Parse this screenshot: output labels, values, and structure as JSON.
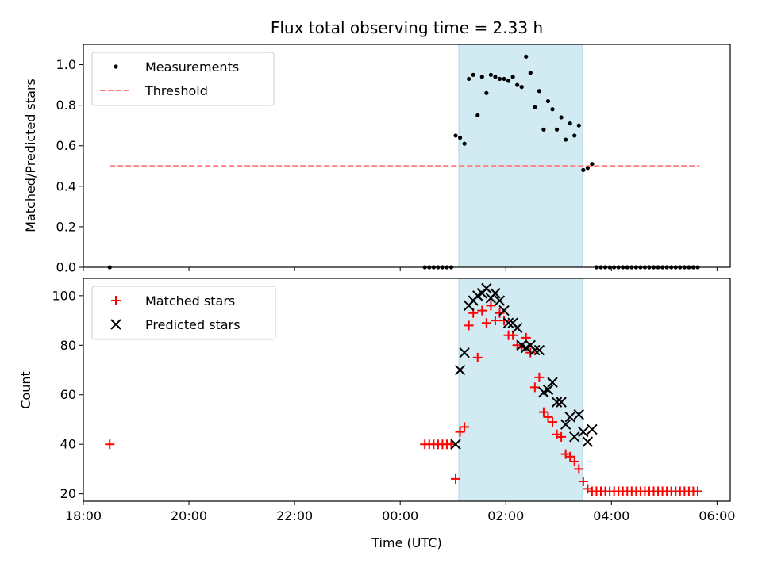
{
  "chart_data": [
    {
      "type": "scatter",
      "title": "Flux total observing time = 2.33 h",
      "xlabel": "",
      "ylabel": "Matched/Predicted stars",
      "xlim": [
        "18:00",
        "06:15"
      ],
      "ylim": [
        0,
        1.1
      ],
      "yticks": [
        "0.0",
        "0.2",
        "0.4",
        "0.6",
        "0.8",
        "1.0"
      ],
      "legend_position": "top-left",
      "observing_window": {
        "start": "01:05",
        "end": "03:25",
        "color": "#add8e6"
      },
      "series": [
        {
          "name": "Measurements",
          "marker": "dot",
          "color": "#000000",
          "x": [
            "18:30",
            "00:28",
            "00:33",
            "00:38",
            "00:43",
            "00:48",
            "00:53",
            "00:58",
            "01:03",
            "01:08",
            "01:13",
            "01:18",
            "01:23",
            "01:28",
            "01:33",
            "01:38",
            "01:43",
            "01:48",
            "01:53",
            "01:58",
            "02:03",
            "02:08",
            "02:13",
            "02:18",
            "02:23",
            "02:28",
            "02:33",
            "02:38",
            "02:43",
            "02:48",
            "02:53",
            "02:58",
            "03:03",
            "03:08",
            "03:13",
            "03:18",
            "03:23",
            "03:28",
            "03:33",
            "03:38",
            "03:43",
            "03:48",
            "03:53",
            "03:58",
            "04:03",
            "04:08",
            "04:13",
            "04:18",
            "04:23",
            "04:28",
            "04:33",
            "04:38",
            "04:43",
            "04:48",
            "04:53",
            "04:58",
            "05:03",
            "05:08",
            "05:13",
            "05:18",
            "05:23",
            "05:28",
            "05:33",
            "05:38"
          ],
          "y": [
            0.0,
            0.0,
            0.0,
            0.0,
            0.0,
            0.0,
            0.0,
            0.0,
            0.65,
            0.64,
            0.61,
            0.93,
            0.95,
            0.75,
            0.94,
            0.86,
            0.95,
            0.94,
            0.93,
            0.93,
            0.92,
            0.94,
            0.9,
            0.89,
            1.04,
            0.96,
            0.79,
            0.87,
            0.68,
            0.82,
            0.78,
            0.68,
            0.74,
            0.63,
            0.71,
            0.65,
            0.7,
            0.48,
            0.49,
            0.51,
            0.0,
            0.0,
            0.0,
            0.0,
            0.0,
            0.0,
            0.0,
            0.0,
            0.0,
            0.0,
            0.0,
            0.0,
            0.0,
            0.0,
            0.0,
            0.0,
            0.0,
            0.0,
            0.0,
            0.0,
            0.0,
            0.0,
            0.0,
            0.0
          ]
        },
        {
          "name": "Threshold",
          "marker": "dashed-line",
          "color": "#ff7f7f",
          "x": [
            "18:30",
            "05:40"
          ],
          "y": [
            0.5,
            0.5
          ]
        }
      ]
    },
    {
      "type": "scatter",
      "title": "",
      "xlabel": "Time (UTC)",
      "ylabel": "Count",
      "xlim": [
        "18:00",
        "06:15"
      ],
      "ylim": [
        17,
        107
      ],
      "yticks": [
        "20",
        "40",
        "60",
        "80",
        "100"
      ],
      "xticks": [
        "18:00",
        "20:00",
        "22:00",
        "00:00",
        "02:00",
        "04:00",
        "06:00"
      ],
      "legend_position": "top-left",
      "observing_window": {
        "start": "01:05",
        "end": "03:25",
        "color": "#add8e6"
      },
      "series": [
        {
          "name": "Matched stars",
          "marker": "plus",
          "color": "#ff0000",
          "x": [
            "18:30",
            "00:28",
            "00:33",
            "00:38",
            "00:43",
            "00:48",
            "00:53",
            "00:58",
            "01:03",
            "01:08",
            "01:13",
            "01:18",
            "01:23",
            "01:28",
            "01:33",
            "01:38",
            "01:43",
            "01:48",
            "01:53",
            "01:58",
            "02:03",
            "02:08",
            "02:13",
            "02:18",
            "02:23",
            "02:28",
            "02:33",
            "02:38",
            "02:43",
            "02:48",
            "02:53",
            "02:58",
            "03:03",
            "03:08",
            "03:13",
            "03:18",
            "03:23",
            "03:28",
            "03:33",
            "03:38",
            "03:43",
            "03:48",
            "03:53",
            "03:58",
            "04:03",
            "04:08",
            "04:13",
            "04:18",
            "04:23",
            "04:28",
            "04:33",
            "04:38",
            "04:43",
            "04:48",
            "04:53",
            "04:58",
            "05:03",
            "05:08",
            "05:13",
            "05:18",
            "05:23",
            "05:28",
            "05:33",
            "05:38"
          ],
          "y": [
            40,
            40,
            40,
            40,
            40,
            40,
            40,
            40,
            26,
            45,
            47,
            88,
            93,
            75,
            94,
            89,
            96,
            90,
            93,
            90,
            84,
            84,
            80,
            79,
            83,
            77,
            63,
            67,
            53,
            51,
            49,
            44,
            43,
            36,
            35,
            33,
            30,
            25,
            22,
            21,
            21,
            21,
            21,
            21,
            21,
            21,
            21,
            21,
            21,
            21,
            21,
            21,
            21,
            21,
            21,
            21,
            21,
            21,
            21,
            21,
            21,
            21,
            21,
            21
          ]
        },
        {
          "name": "Predicted stars",
          "marker": "x",
          "color": "#000000",
          "x": [
            "01:03",
            "01:08",
            "01:13",
            "01:18",
            "01:23",
            "01:28",
            "01:33",
            "01:38",
            "01:43",
            "01:48",
            "01:53",
            "01:58",
            "02:03",
            "02:08",
            "02:13",
            "02:18",
            "02:23",
            "02:28",
            "02:33",
            "02:38",
            "02:43",
            "02:48",
            "02:53",
            "02:58",
            "03:03",
            "03:08",
            "03:13",
            "03:18",
            "03:23",
            "03:28",
            "03:33",
            "03:38"
          ],
          "y": [
            40,
            70,
            77,
            96,
            98,
            100,
            101,
            103,
            99,
            101,
            98,
            94,
            89,
            89,
            87,
            80,
            79,
            80,
            78,
            78,
            61,
            62,
            65,
            57,
            57,
            48,
            51,
            43,
            52,
            45,
            41,
            46
          ]
        }
      ]
    }
  ]
}
